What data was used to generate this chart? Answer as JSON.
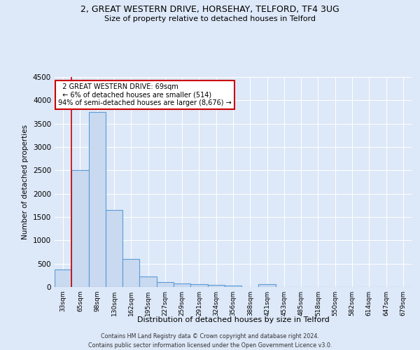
{
  "title": "2, GREAT WESTERN DRIVE, HORSEHAY, TELFORD, TF4 3UG",
  "subtitle": "Size of property relative to detached houses in Telford",
  "xlabel": "Distribution of detached houses by size in Telford",
  "ylabel": "Number of detached properties",
  "footer_line1": "Contains HM Land Registry data © Crown copyright and database right 2024.",
  "footer_line2": "Contains public sector information licensed under the Open Government Licence v3.0.",
  "categories": [
    "33sqm",
    "65sqm",
    "98sqm",
    "130sqm",
    "162sqm",
    "195sqm",
    "227sqm",
    "259sqm",
    "291sqm",
    "324sqm",
    "356sqm",
    "388sqm",
    "421sqm",
    "453sqm",
    "485sqm",
    "518sqm",
    "550sqm",
    "582sqm",
    "614sqm",
    "647sqm",
    "679sqm"
  ],
  "values": [
    375,
    2500,
    3750,
    1650,
    600,
    230,
    110,
    75,
    55,
    40,
    35,
    0,
    55,
    0,
    0,
    0,
    0,
    0,
    0,
    0,
    0
  ],
  "bar_color": "#c9d9f0",
  "bar_edge_color": "#5b9bd5",
  "ylim": [
    0,
    4500
  ],
  "yticks": [
    0,
    500,
    1000,
    1500,
    2000,
    2500,
    3000,
    3500,
    4000,
    4500
  ],
  "annotation_line1": "  2 GREAT WESTERN DRIVE: 69sqm",
  "annotation_line2": "  ← 6% of detached houses are smaller (514)",
  "annotation_line3": "94% of semi-detached houses are larger (8,676) →",
  "annotation_box_color": "#ffffff",
  "annotation_border_color": "#cc0000",
  "red_line_x": 0.5,
  "background_color": "#dde8f8",
  "grid_color": "#ffffff"
}
